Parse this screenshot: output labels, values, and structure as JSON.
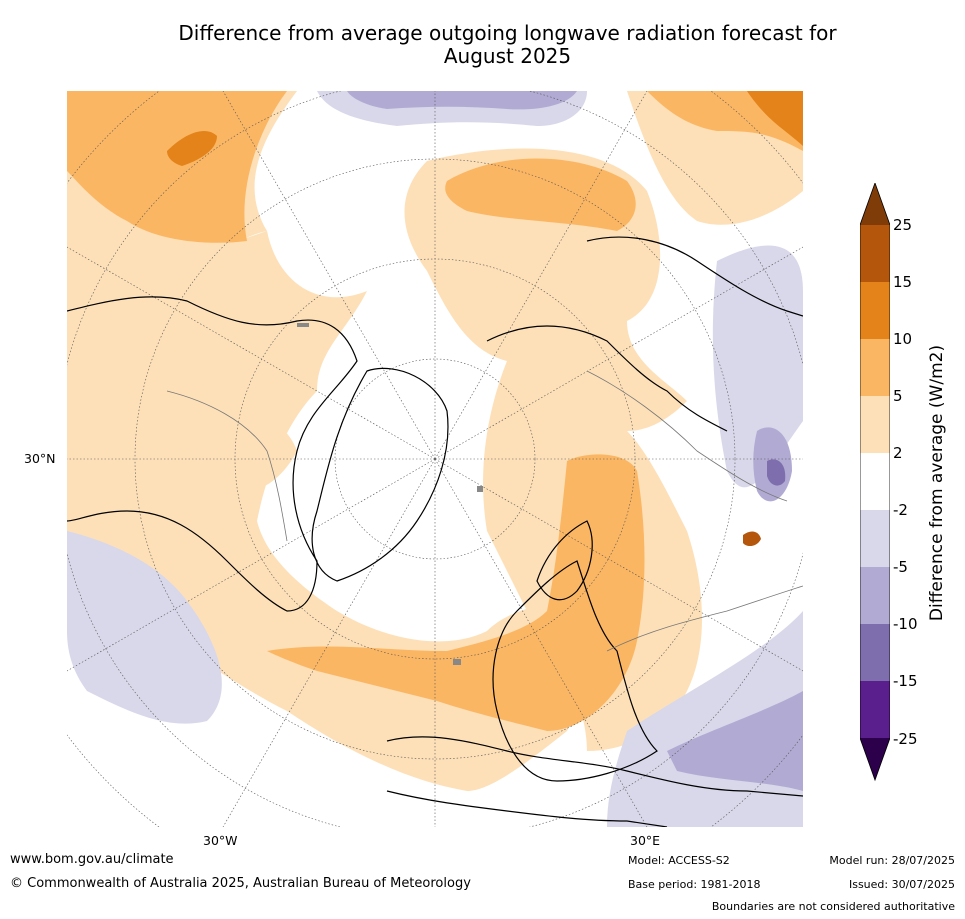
{
  "title": "Difference from average outgoing longwave radiation forecast for August 2025",
  "title_lines": [
    "Difference from average outgoing longwave radiation forecast for",
    "August 2025"
  ],
  "map": {
    "lat_label": "30°N",
    "lon_labels": [
      "30°W",
      "30°E"
    ],
    "projection": "north-polar-stereographic",
    "colors": {
      "cat_m25": "#5a1f8c",
      "cat_m15": "#7e6eae",
      "cat_m10": "#b1abd3",
      "cat_m5": "#d8d8ea",
      "cat_neutral": "#ffffff",
      "cat_p2": "#fde0b8",
      "cat_p5": "#fbb663",
      "cat_p10": "#e3831a",
      "cat_p15": "#b4570c"
    }
  },
  "colorbar": {
    "label": "Difference from average (W/m2)",
    "ticks": [
      "25",
      "15",
      "10",
      "5",
      "2",
      "-2",
      "-5",
      "-10",
      "-15",
      "-25"
    ],
    "colors_top_to_bottom": [
      "#7f3b08",
      "#b4570c",
      "#e3831a",
      "#fbb663",
      "#fde0b8",
      "#ffffff",
      "#d8d8ea",
      "#b1abd3",
      "#7e6eae",
      "#5a1f8c",
      "#2d004b"
    ]
  },
  "footer": {
    "url": "www.bom.gov.au/climate",
    "copyright": "© Commonwealth of Australia 2025, Australian Bureau of Meteorology",
    "model": "Model: ACCESS-S2",
    "base_period": "Base period: 1981-2018",
    "model_run": "Model run: 28/07/2025",
    "issued": "Issued: 30/07/2025",
    "disclaimer": "Boundaries are not considered authoritative"
  }
}
